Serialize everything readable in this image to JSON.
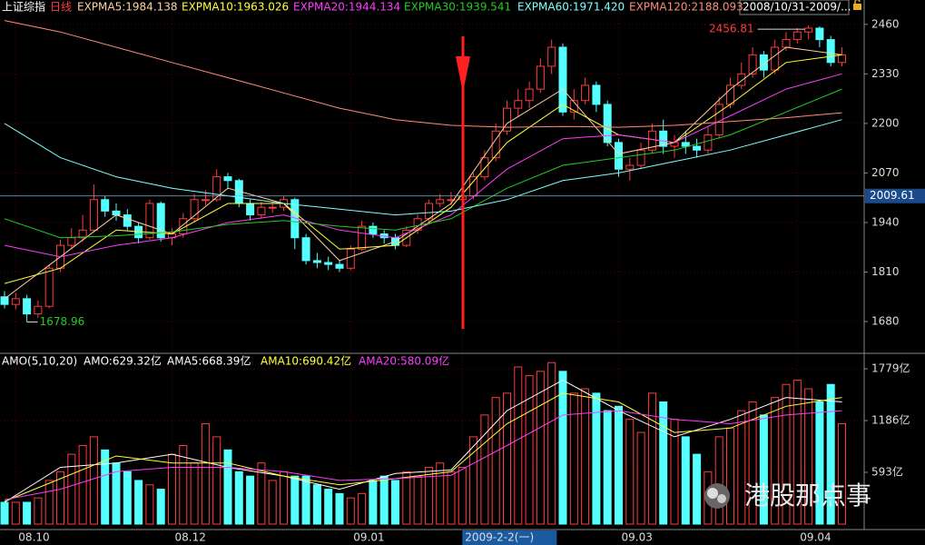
{
  "header": {
    "index_name": "上证综指",
    "period": "日线",
    "range": "2008/10/31-2009/..."
  },
  "watermark": "港股那点事",
  "chart_data": [
    {
      "type": "candlestick",
      "categories": [
        null,
        "08.10",
        null,
        null,
        null,
        null,
        null,
        null,
        null,
        null,
        null,
        null,
        null,
        null,
        null,
        "08.12",
        null,
        null,
        null,
        null,
        null,
        null,
        null,
        null,
        null,
        null,
        null,
        null,
        null,
        null,
        null,
        "09.01",
        null,
        null,
        null,
        null,
        null,
        null,
        null,
        null,
        null,
        "2009-2-2(一)",
        null,
        null,
        null,
        null,
        null,
        null,
        null,
        null,
        null,
        null,
        null,
        null,
        null,
        "09.03",
        null,
        null,
        null,
        null,
        null,
        null,
        null,
        null,
        null,
        null,
        null,
        null,
        null,
        null,
        null,
        "09.04",
        null,
        null,
        null,
        null
      ],
      "open": [
        1745,
        1725,
        1740,
        1700,
        1720,
        1820,
        1880,
        1900,
        1920,
        2000,
        1970,
        1960,
        1930,
        1900,
        1990,
        1900,
        1910,
        1950,
        2000,
        2000,
        2060,
        2050,
        1990,
        1960,
        1980,
        1980,
        2000,
        1900,
        1840,
        1835,
        1830,
        1820,
        1870,
        1930,
        1910,
        1900,
        1880,
        1920,
        1950,
        1990,
        2000,
        2000,
        2009.61,
        2060,
        2110,
        2180,
        2240,
        2260,
        2290,
        2350,
        2400,
        2230,
        2260,
        2300,
        2250,
        2150,
        2080,
        2090,
        2130,
        2180,
        2140,
        2150,
        2140,
        2130,
        2170,
        2250,
        2300,
        2330,
        2380,
        2340,
        2400,
        2420,
        2440,
        2450,
        2420,
        2360
      ],
      "high": [
        1760,
        1755,
        1750,
        1735,
        1830,
        1895,
        1925,
        1960,
        2040,
        2010,
        1990,
        1975,
        1940,
        2000,
        1995,
        1925,
        1965,
        2015,
        2025,
        2080,
        2070,
        2055,
        2000,
        1995,
        1995,
        2010,
        2005,
        1910,
        1860,
        1850,
        1840,
        1880,
        1945,
        1940,
        1920,
        1910,
        1930,
        1960,
        2000,
        2015,
        2020,
        2030,
        2070,
        2130,
        2200,
        2260,
        2290,
        2310,
        2370,
        2420,
        2410,
        2290,
        2320,
        2310,
        2260,
        2160,
        2110,
        2150,
        2200,
        2210,
        2170,
        2180,
        2160,
        2190,
        2270,
        2320,
        2360,
        2400,
        2390,
        2420,
        2440,
        2450,
        2456.81,
        2455,
        2430,
        2400
      ],
      "low": [
        1715,
        1712,
        1678.96,
        1690,
        1715,
        1810,
        1870,
        1890,
        1915,
        1955,
        1945,
        1920,
        1885,
        1895,
        1890,
        1880,
        1900,
        1940,
        1985,
        1995,
        2030,
        1980,
        1945,
        1950,
        1965,
        1970,
        1870,
        1830,
        1820,
        1815,
        1810,
        1815,
        1865,
        1900,
        1885,
        1870,
        1875,
        1910,
        1940,
        1980,
        1985,
        1990,
        2000,
        2050,
        2100,
        2170,
        2220,
        2240,
        2280,
        2330,
        2220,
        2210,
        2250,
        2230,
        2140,
        2060,
        2050,
        2080,
        2120,
        2120,
        2110,
        2120,
        2110,
        2120,
        2160,
        2240,
        2290,
        2320,
        2320,
        2330,
        2390,
        2410,
        2420,
        2400,
        2350,
        2350
      ],
      "close": [
        1725,
        1740,
        1700,
        1720,
        1820,
        1880,
        1900,
        1920,
        2000,
        1970,
        1960,
        1930,
        1900,
        1990,
        1900,
        1910,
        1950,
        2000,
        2000,
        2060,
        2050,
        1990,
        1960,
        1980,
        1980,
        2000,
        1900,
        1840,
        1835,
        1830,
        1820,
        1870,
        1930,
        1910,
        1900,
        1880,
        1920,
        1950,
        1990,
        2000,
        2000,
        2009.61,
        2060,
        2110,
        2180,
        2240,
        2260,
        2290,
        2350,
        2400,
        2230,
        2260,
        2300,
        2250,
        2150,
        2080,
        2090,
        2130,
        2180,
        2140,
        2150,
        2140,
        2130,
        2170,
        2250,
        2300,
        2330,
        2380,
        2340,
        2400,
        2420,
        2440,
        2450,
        2420,
        2360,
        2380
      ],
      "up_color": "#ff3c3c",
      "down_color": "#54ffff",
      "ylim": [
        1599,
        2481
      ],
      "yticks": [
        1680,
        1810,
        1940,
        2070,
        2200,
        2330,
        2460
      ],
      "grid": true,
      "series": [
        {
          "legend": "EXPMA5:1984.138",
          "color": "#ffd0a0",
          "x": [
            0,
            5,
            10,
            15,
            20,
            25,
            30,
            35,
            40,
            45,
            50,
            55,
            60,
            65,
            70,
            75
          ],
          "values": [
            1740,
            1850,
            1960,
            1910,
            2030,
            1990,
            1840,
            1890,
            1990,
            2200,
            2290,
            2120,
            2150,
            2290,
            2400,
            2380
          ]
        },
        {
          "legend": "EXPMA10:1963.026",
          "color": "#ffff3c",
          "x": [
            0,
            5,
            10,
            15,
            20,
            25,
            30,
            35,
            40,
            45,
            50,
            55,
            60,
            65,
            70,
            75
          ],
          "values": [
            1780,
            1820,
            1920,
            1910,
            1990,
            1990,
            1870,
            1880,
            1980,
            2150,
            2250,
            2170,
            2150,
            2250,
            2360,
            2380
          ]
        },
        {
          "legend": "EXPMA20:1944.134",
          "color": "#ff3cff",
          "x": [
            0,
            5,
            10,
            15,
            20,
            25,
            30,
            35,
            40,
            45,
            50,
            55,
            60,
            65,
            70,
            75
          ],
          "values": [
            1880,
            1850,
            1880,
            1900,
            1940,
            1960,
            1920,
            1900,
            1960,
            2080,
            2160,
            2170,
            2150,
            2220,
            2290,
            2330
          ]
        },
        {
          "legend": "EXPMA30:1939.541",
          "color": "#22cc22",
          "x": [
            0,
            5,
            10,
            15,
            20,
            25,
            30,
            35,
            40,
            45,
            50,
            55,
            60,
            65,
            70,
            75
          ],
          "values": [
            1950,
            1900,
            1905,
            1915,
            1935,
            1945,
            1930,
            1920,
            1950,
            2030,
            2090,
            2110,
            2130,
            2170,
            2230,
            2290
          ]
        },
        {
          "legend": "EXPMA60:1971.420",
          "color": "#80ffff",
          "x": [
            0,
            5,
            10,
            15,
            20,
            25,
            30,
            35,
            40,
            45,
            50,
            55,
            60,
            65,
            70,
            75
          ],
          "values": [
            2200,
            2110,
            2060,
            2030,
            2010,
            1990,
            1975,
            1960,
            1970,
            2000,
            2050,
            2070,
            2100,
            2130,
            2170,
            2210
          ]
        },
        {
          "legend": "EXPMA120:2188.093",
          "color": "#ff8c78",
          "x": [
            0,
            5,
            10,
            15,
            20,
            25,
            30,
            35,
            40,
            45,
            50,
            55,
            60,
            65,
            70,
            75
          ],
          "values": [
            2470,
            2440,
            2400,
            2360,
            2320,
            2280,
            2240,
            2210,
            2195,
            2190,
            2192,
            2190,
            2195,
            2205,
            2215,
            2228
          ]
        }
      ]
    },
    {
      "type": "bar",
      "title": "AMO(5,10,20)",
      "subtitle": "AMO:629.32亿",
      "values": [
        250,
        250,
        250,
        300,
        500,
        600,
        800,
        900,
        1000,
        850,
        700,
        600,
        500,
        450,
        400,
        800,
        900,
        700,
        1150,
        1000,
        850,
        600,
        550,
        700,
        500,
        600,
        550,
        550,
        450,
        400,
        350,
        300,
        350,
        500,
        550,
        500,
        600,
        550,
        650,
        700,
        600,
        650,
        1000,
        1250,
        1450,
        1500,
        1800,
        1700,
        1750,
        1850,
        1750,
        1500,
        1550,
        1500,
        1300,
        1350,
        1200,
        1050,
        1500,
        1400,
        1200,
        1000,
        800,
        600,
        1000,
        1100,
        1300,
        1400,
        1250,
        1450,
        1600,
        1650,
        1550,
        1400,
        1600,
        1150
      ],
      "ylim": [
        0,
        1925
      ],
      "yticks": [
        {
          "value": 593,
          "label": "593亿"
        },
        {
          "value": 1186,
          "label": "1186亿"
        },
        {
          "value": 1779,
          "label": "1779亿"
        }
      ],
      "series": [
        {
          "legend": "AMA5:668.39亿",
          "color": "#ffffff",
          "x": [
            0,
            5,
            10,
            15,
            20,
            25,
            30,
            35,
            40,
            45,
            50,
            55,
            60,
            65,
            70,
            75
          ],
          "values": [
            250,
            650,
            700,
            800,
            650,
            550,
            400,
            580,
            620,
            1300,
            1650,
            1300,
            1000,
            1200,
            1450,
            1400
          ]
        },
        {
          "legend": "AMA10:690.42亿",
          "color": "#ffff3c",
          "x": [
            0,
            5,
            10,
            15,
            20,
            25,
            30,
            35,
            40,
            45,
            50,
            55,
            60,
            65,
            70,
            75
          ],
          "values": [
            260,
            520,
            780,
            700,
            700,
            550,
            450,
            520,
            600,
            1150,
            1500,
            1400,
            1050,
            1100,
            1350,
            1450
          ]
        },
        {
          "legend": "AMA20:580.09亿",
          "color": "#ff3cff",
          "x": [
            0,
            5,
            10,
            15,
            20,
            25,
            30,
            35,
            40,
            45,
            50,
            55,
            60,
            65,
            70,
            75
          ],
          "values": [
            280,
            400,
            600,
            650,
            650,
            600,
            500,
            520,
            560,
            900,
            1250,
            1300,
            1200,
            1150,
            1250,
            1300
          ]
        }
      ]
    }
  ]
}
